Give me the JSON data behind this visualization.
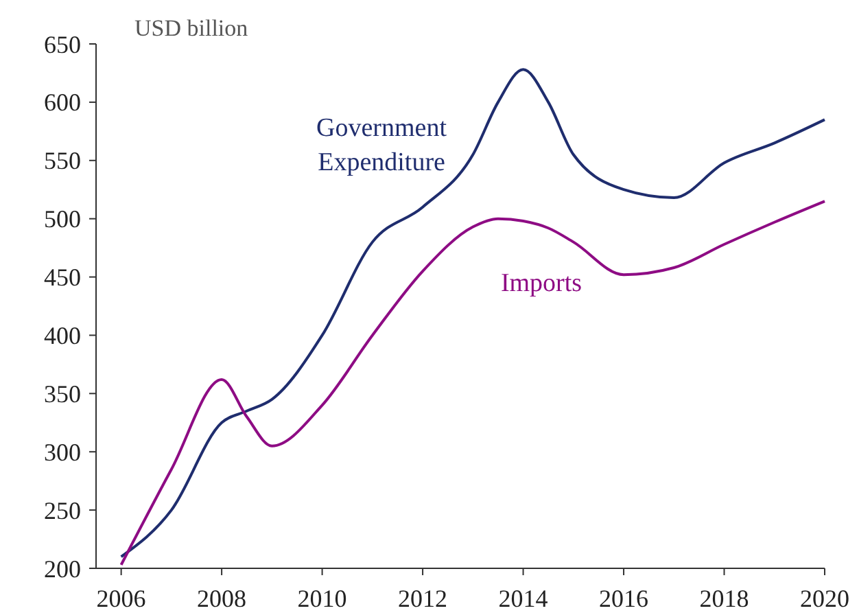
{
  "chart_data": {
    "type": "line",
    "ylabel": "USD billion",
    "x": [
      2006,
      2007,
      2008,
      2008.5,
      2009,
      2010,
      2011,
      2012,
      2013,
      2013.5,
      2014,
      2014.5,
      2015,
      2016,
      2017,
      2018,
      2019,
      2020
    ],
    "xlim": [
      2005.5,
      2020
    ],
    "xticks": [
      2006,
      2008,
      2010,
      2012,
      2014,
      2016,
      2018,
      2020
    ],
    "ylim": [
      200,
      650
    ],
    "yticks": [
      200,
      250,
      300,
      350,
      400,
      450,
      500,
      550,
      600,
      650
    ],
    "grid": false,
    "marker": "none",
    "line_style": "solid",
    "series": [
      {
        "name": "Government Expenditure",
        "color": "#1f2d6e",
        "values": [
          210,
          250,
          325,
          335,
          345,
          400,
          480,
          510,
          555,
          600,
          628,
          600,
          555,
          525,
          518,
          548,
          565,
          585
        ]
      },
      {
        "name": "Imports",
        "color": "#8e0c84",
        "values": [
          203,
          285,
          362,
          330,
          305,
          340,
          400,
          455,
          493,
          500,
          498,
          492,
          480,
          452,
          458,
          478,
          497,
          515
        ]
      }
    ]
  }
}
